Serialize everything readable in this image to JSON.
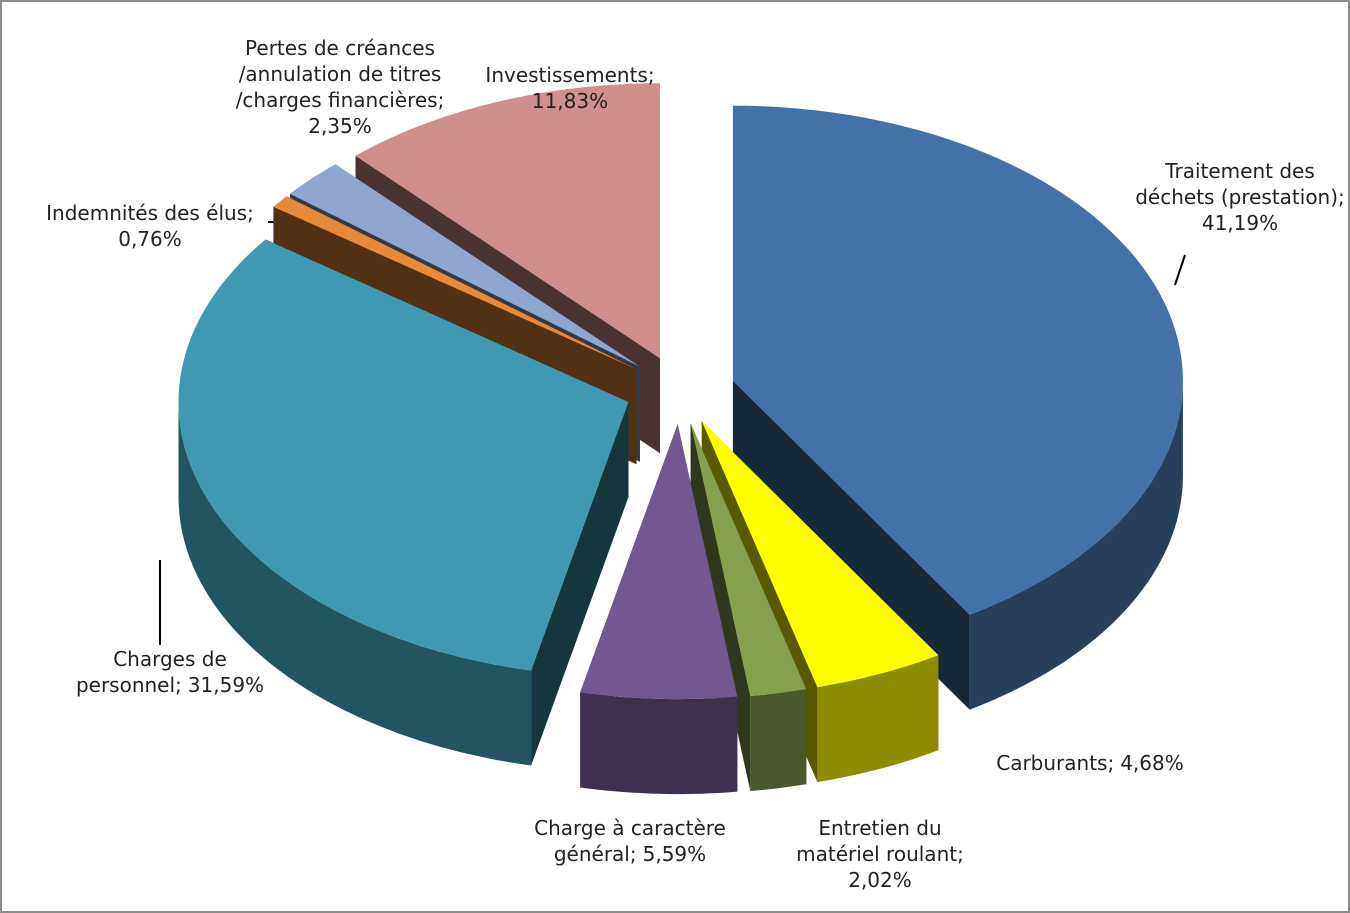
{
  "chart_data": {
    "type": "pie",
    "categories": [
      "Traitement des déchets (prestation);",
      "Carburants;",
      "Entretien du matériel roulant;",
      "Charge à caractère général;",
      "Charges de personnel;",
      "Indemnités des élus;",
      "Pertes de créances /annulation de titres /charges financières;",
      "Investissements;"
    ],
    "values": [
      41.19,
      4.68,
      2.02,
      5.59,
      31.59,
      0.76,
      2.35,
      11.83
    ],
    "value_labels": [
      "41,19%",
      "4,68%",
      "2,02%",
      "5,59%",
      "31,59%",
      "0,76%",
      "2,35%",
      "11,83%"
    ],
    "colors": [
      "#4472a8",
      "#ffff00",
      "#86a050",
      "#725890",
      "#4099b0",
      "#e88a3a",
      "#8fa6cf",
      "#cf8f8f"
    ]
  }
}
